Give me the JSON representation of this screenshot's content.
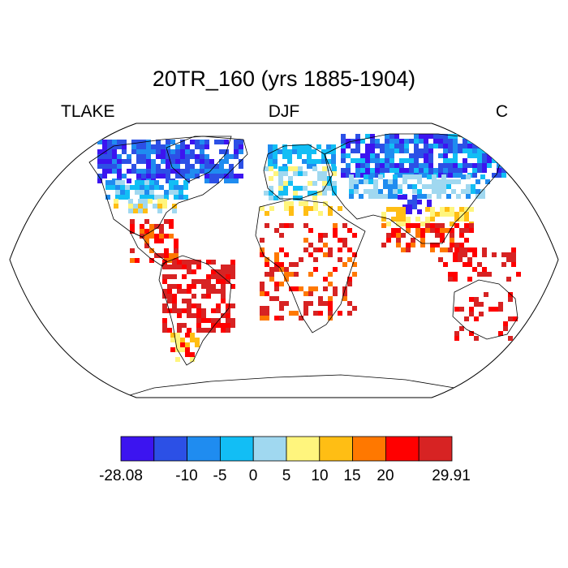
{
  "title": "20TR_160 (yrs 1885-1904)",
  "left_label": "TLAKE",
  "center_label": "DJF",
  "right_label": "C",
  "projection": "Robinson",
  "colorbar": {
    "labels": [
      "-28.08",
      "-10",
      "-5",
      "0",
      "5",
      "10",
      "15",
      "20",
      "29.91"
    ],
    "colors": [
      "#3c14f0",
      "#2c50e6",
      "#1f8cf0",
      "#12bef5",
      "#a0d8f0",
      "#fff57d",
      "#ffbe14",
      "#ff7800",
      "#ff0000",
      "#d72323"
    ]
  }
}
